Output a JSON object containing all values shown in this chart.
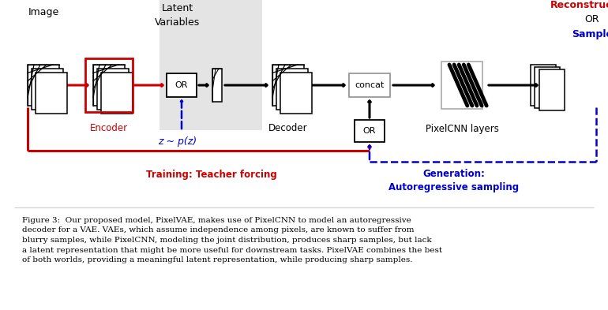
{
  "bg_color": "#ffffff",
  "red_color": "#cc0000",
  "blue_color": "#0000cc",
  "black_color": "#000000",
  "latent_bg": "#e8e8e8",
  "caption": "Figure 3:  Our proposed model, PixelVAE, makes use of PixelCNN to model an autoregressive\ndecoder for a VAE. VAEs, which assume independence among pixels, are known to suffer from\nblurry samples, while PixelCNN, modeling the joint distribution, produces sharp samples, but lack\na latent representation that might be more useful for downstream tasks. PixelVAE combines the best\nof both worlds, providing a meaningful latent representation, while producing sharp samples.",
  "label_image": "Image",
  "label_encoder": "Encoder",
  "label_latent1": "Latent",
  "label_latent2": "Variables",
  "label_decoder": "Decoder",
  "label_concat": "concat",
  "label_or": "OR",
  "label_pixelcnn": "PixelCNN layers",
  "label_recon1": "Reconstruction",
  "label_recon2": "OR",
  "label_recon3": "Sample",
  "label_z": "z ∼ p(z)",
  "label_teacher": "Training: Teacher forcing",
  "label_gen1": "Generation:",
  "label_gen2": "Autoregressive sampling"
}
